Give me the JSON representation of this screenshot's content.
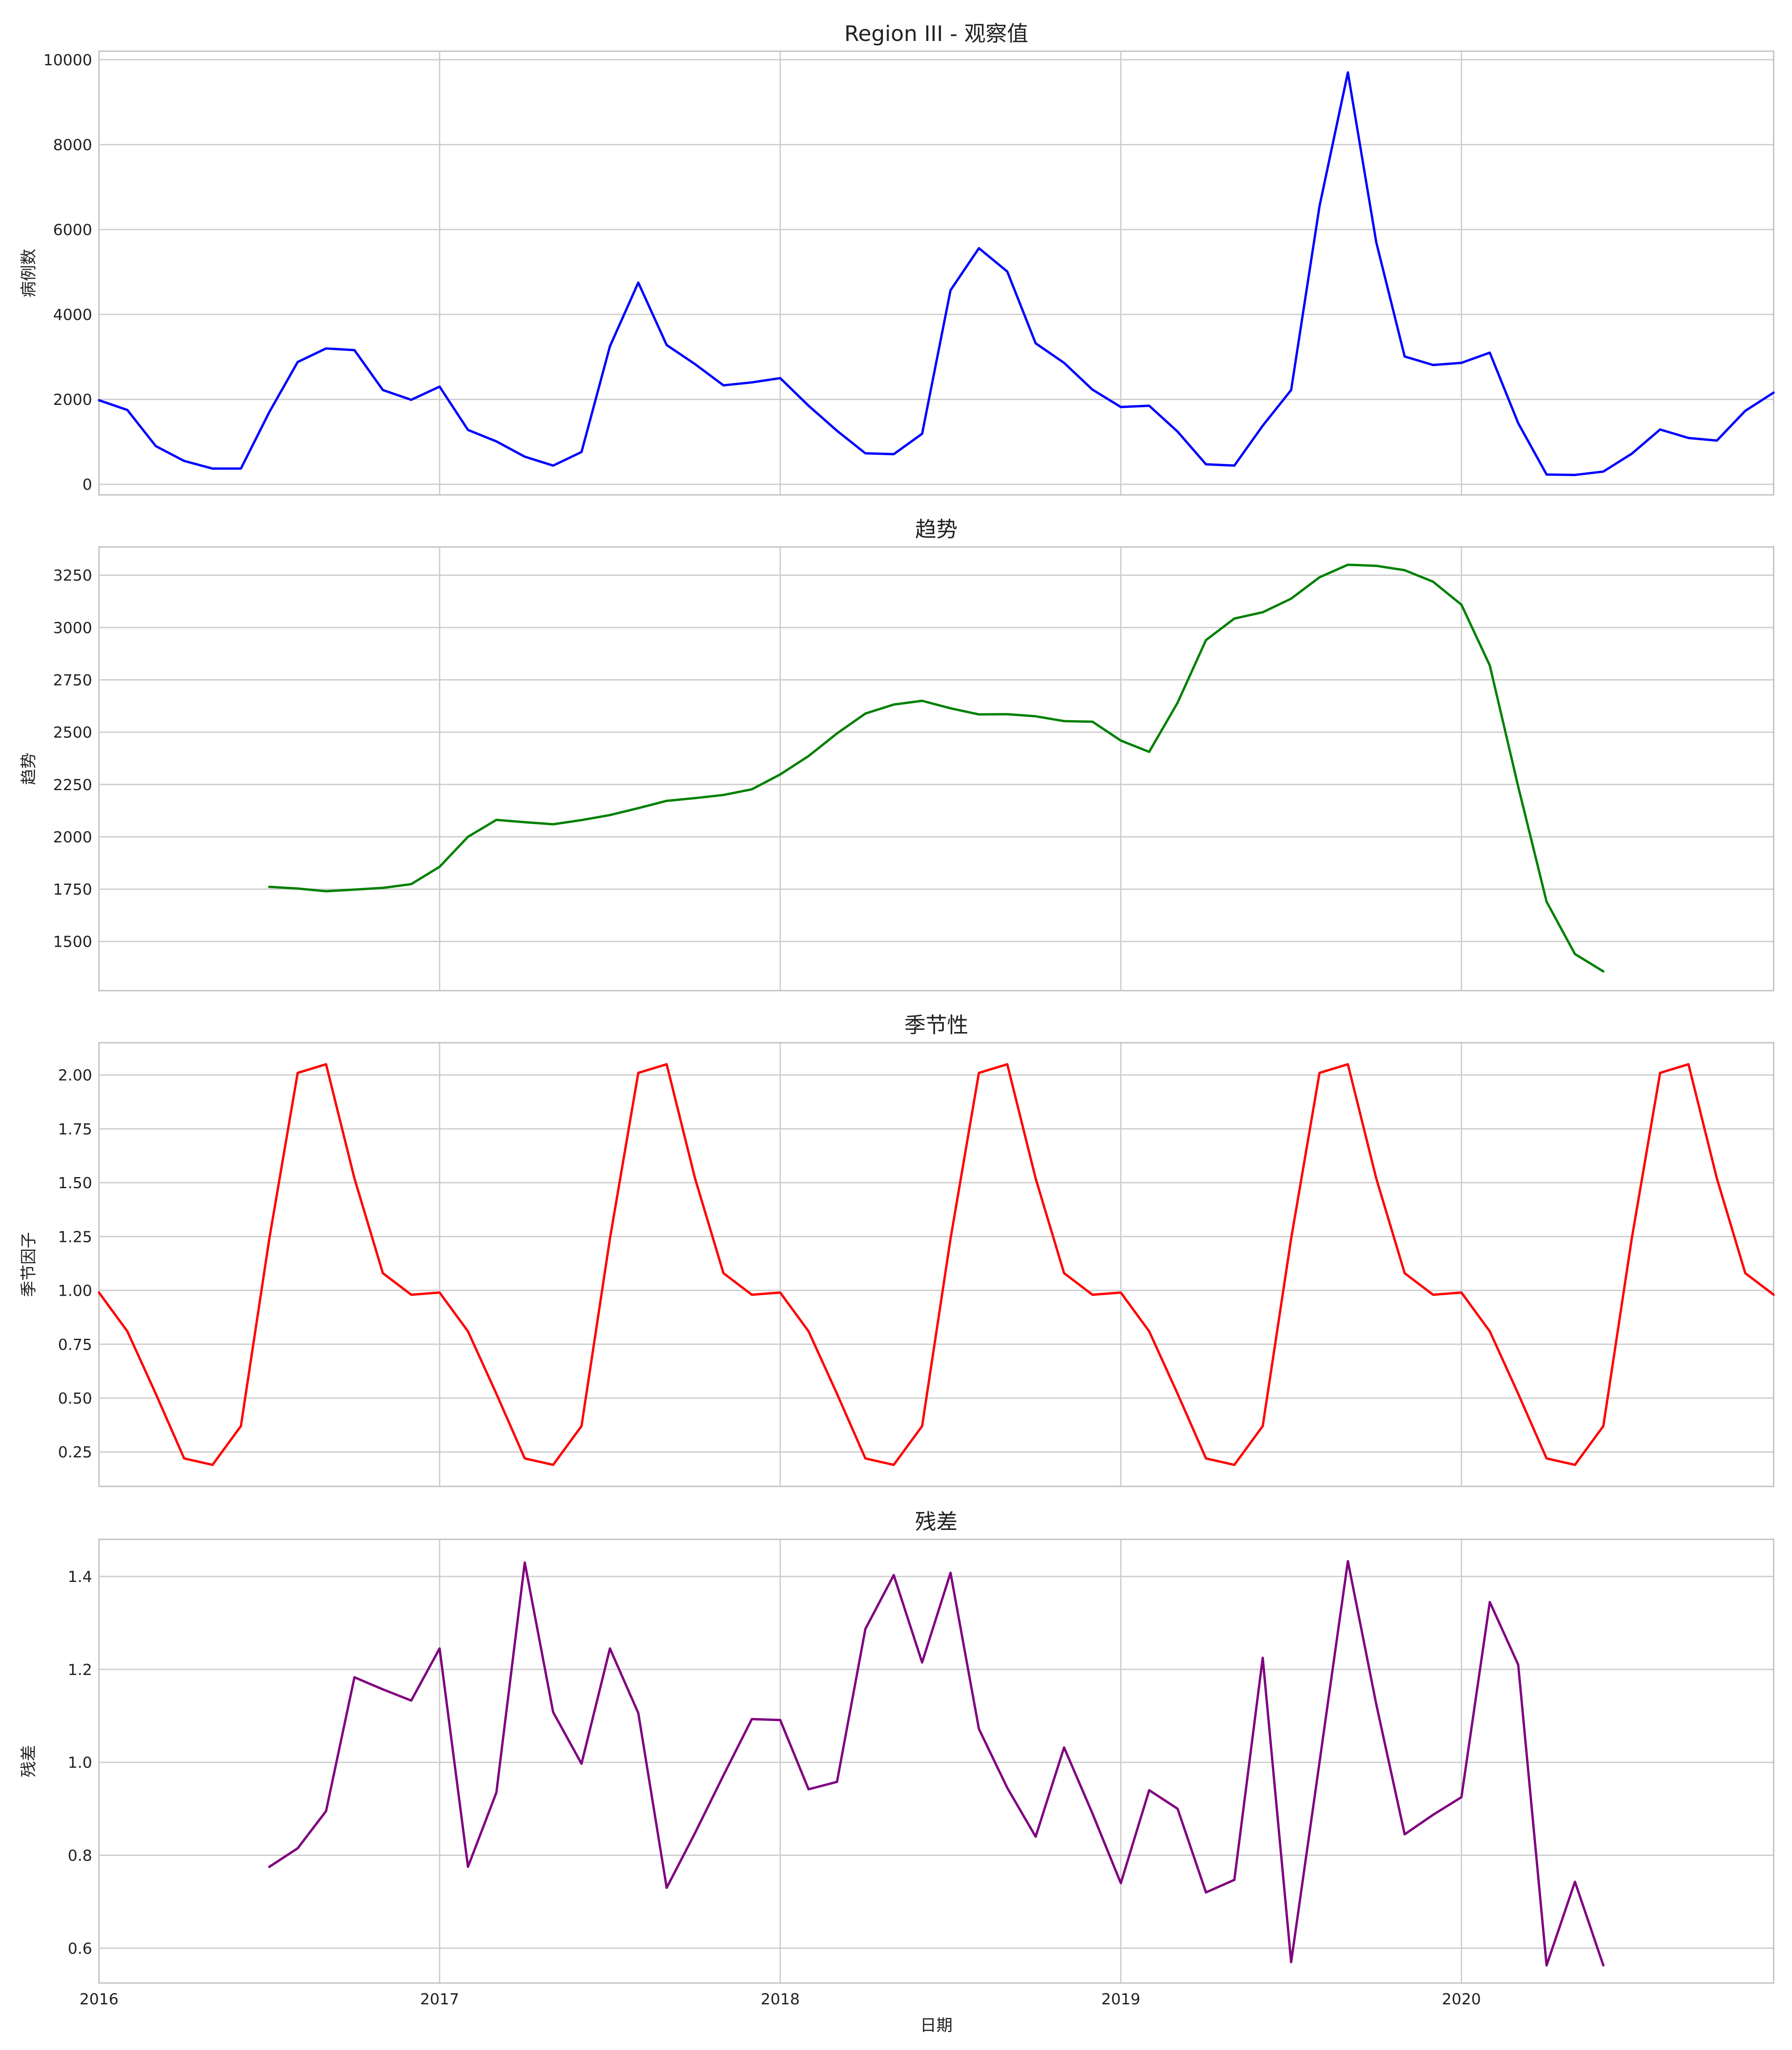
{
  "chart_data": [
    {
      "type": "line",
      "title": "Region III - 观察值",
      "ylabel": "病例数",
      "xlabel": "",
      "color": "#0000ff",
      "ylim": [
        -250,
        10200
      ],
      "yticks": [
        0,
        2000,
        4000,
        6000,
        8000,
        10000
      ],
      "ytick_labels": [
        "0",
        "2000",
        "4000",
        "6000",
        "8000",
        "10000"
      ],
      "grid": true,
      "series": [
        {
          "values": [
            1980,
            1750,
            900,
            550,
            370,
            370,
            1700,
            2880,
            3200,
            3160,
            2220,
            1990,
            2300,
            1280,
            1010,
            650,
            440,
            760,
            3250,
            4750,
            3280,
            2830,
            2330,
            2400,
            2500,
            1850,
            1260,
            730,
            710,
            1190,
            4570,
            5560,
            5010,
            3320,
            2860,
            2230,
            1820,
            1850,
            1240,
            470,
            440,
            1380,
            2220,
            6550,
            9700,
            5700,
            3010,
            2810,
            2860,
            3100,
            1440,
            230,
            220,
            300,
            720,
            1290,
            1090,
            1030,
            1730,
            2160
          ]
        }
      ]
    },
    {
      "type": "line",
      "title": "趋势",
      "ylabel": "趋势",
      "xlabel": "",
      "color": "#008000",
      "ylim": [
        1265,
        3385
      ],
      "yticks": [
        1500,
        1750,
        2000,
        2250,
        2500,
        2750,
        3000,
        3250
      ],
      "ytick_labels": [
        "1500",
        "1750",
        "2000",
        "2250",
        "2500",
        "2750",
        "3000",
        "3250"
      ],
      "grid": true,
      "series": [
        {
          "values": [
            null,
            null,
            null,
            null,
            null,
            null,
            1761,
            1753,
            1740,
            1748,
            1756,
            1774,
            1857,
            2000,
            2081,
            2070,
            2060,
            2080,
            2104,
            2137,
            2172,
            2185,
            2200,
            2227,
            2298,
            2386,
            2494,
            2589,
            2632,
            2650,
            2614,
            2585,
            2586,
            2576,
            2553,
            2550,
            2460,
            2406,
            2641,
            2940,
            3043,
            3073,
            3138,
            3240,
            3300,
            3295,
            3274,
            3219,
            3109,
            2819,
            2240,
            1690,
            1440,
            1357,
            null,
            null,
            null,
            null,
            null,
            null
          ]
        }
      ]
    },
    {
      "type": "line",
      "title": "季节性",
      "ylabel": "季节因子",
      "xlabel": "",
      "color": "#ff0000",
      "ylim": [
        0.09,
        2.15
      ],
      "yticks": [
        0.25,
        0.5,
        0.75,
        1.0,
        1.25,
        1.5,
        1.75,
        2.0
      ],
      "ytick_labels": [
        "0.25",
        "0.50",
        "0.75",
        "1.00",
        "1.25",
        "1.50",
        "1.75",
        "2.00"
      ],
      "grid": true,
      "series": [
        {
          "values": [
            0.99,
            0.81,
            0.52,
            0.22,
            0.19,
            0.37,
            1.24,
            2.01,
            2.05,
            1.52,
            1.08,
            0.98,
            0.99,
            0.81,
            0.52,
            0.22,
            0.19,
            0.37,
            1.24,
            2.01,
            2.05,
            1.52,
            1.08,
            0.98,
            0.99,
            0.81,
            0.52,
            0.22,
            0.19,
            0.37,
            1.24,
            2.01,
            2.05,
            1.52,
            1.08,
            0.98,
            0.99,
            0.81,
            0.52,
            0.22,
            0.19,
            0.37,
            1.24,
            2.01,
            2.05,
            1.52,
            1.08,
            0.98,
            0.99,
            0.81,
            0.52,
            0.22,
            0.19,
            0.37,
            1.24,
            2.01,
            2.05,
            1.52,
            1.08,
            0.98
          ]
        }
      ]
    },
    {
      "type": "line",
      "title": "残差",
      "ylabel": "残差",
      "xlabel": "日期",
      "color": "#800080",
      "ylim": [
        0.525,
        1.48
      ],
      "yticks": [
        0.6,
        0.8,
        1.0,
        1.2,
        1.4
      ],
      "ytick_labels": [
        "0.6",
        "0.8",
        "1.0",
        "1.2",
        "1.4"
      ],
      "grid": true,
      "series": [
        {
          "values": [
            null,
            null,
            null,
            null,
            null,
            null,
            0.775,
            0.815,
            0.895,
            1.183,
            1.157,
            1.133,
            1.245,
            0.775,
            0.935,
            1.43,
            1.108,
            0.997,
            1.245,
            1.106,
            0.73,
            0.848,
            0.972,
            1.093,
            1.091,
            0.942,
            0.958,
            1.287,
            1.403,
            1.215,
            1.408,
            1.072,
            0.945,
            0.84,
            1.032,
            0.89,
            0.74,
            0.94,
            0.9,
            0.72,
            0.747,
            1.225,
            0.57,
            1.0,
            1.433,
            1.125,
            0.845,
            0.887,
            0.925,
            1.345,
            1.21,
            0.563,
            0.743,
            0.563,
            null,
            null,
            null,
            null,
            null,
            null
          ]
        }
      ]
    }
  ],
  "x_axis": {
    "start": "2016-01",
    "frequency": "monthly",
    "xlim": [
      "2016-01",
      "2020-12"
    ],
    "ticks": [
      "2016",
      "2017",
      "2018",
      "2019",
      "2020"
    ],
    "label": "日期"
  }
}
